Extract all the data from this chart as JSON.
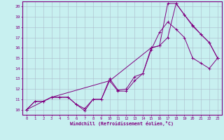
{
  "xlabel": "Windchill (Refroidissement éolien,°C)",
  "xlim": [
    0,
    23
  ],
  "ylim": [
    10,
    20
  ],
  "xticks": [
    0,
    1,
    2,
    3,
    4,
    5,
    6,
    7,
    8,
    9,
    10,
    11,
    12,
    13,
    14,
    15,
    16,
    17,
    18,
    19,
    20,
    21,
    22,
    23
  ],
  "yticks": [
    10,
    11,
    12,
    13,
    14,
    15,
    16,
    17,
    18,
    19,
    20
  ],
  "bg_color": "#c8f0f0",
  "line_color": "#800080",
  "grid_color": "#aabbcc",
  "line1_x": [
    0,
    1,
    2,
    3,
    4,
    5,
    6,
    7,
    8,
    9,
    10,
    11,
    12,
    13,
    14,
    15,
    16,
    17,
    18,
    19,
    20,
    21,
    22,
    23
  ],
  "line1_y": [
    10.0,
    10.8,
    10.8,
    11.2,
    11.2,
    11.2,
    10.5,
    9.9,
    11.0,
    11.0,
    13.0,
    11.9,
    12.0,
    13.2,
    13.5,
    16.0,
    16.2,
    20.3,
    20.3,
    19.2,
    18.1,
    17.3,
    16.5,
    15.0
  ],
  "line2_x": [
    0,
    1,
    2,
    3,
    4,
    5,
    6,
    7,
    8,
    9,
    10,
    11,
    12,
    13,
    14,
    15,
    16,
    17,
    18,
    19,
    20,
    21,
    22,
    23
  ],
  "line2_y": [
    10.0,
    10.8,
    10.8,
    11.2,
    11.2,
    11.2,
    10.5,
    10.1,
    11.0,
    11.0,
    12.8,
    11.8,
    11.8,
    12.8,
    13.5,
    15.8,
    17.5,
    18.5,
    17.8,
    17.0,
    15.0,
    14.5,
    14.0,
    15.0
  ],
  "line3_x": [
    0,
    3,
    10,
    15,
    16,
    17,
    18,
    19,
    20,
    21,
    22,
    23
  ],
  "line3_y": [
    10.0,
    11.2,
    12.8,
    16.0,
    16.2,
    17.0,
    20.3,
    19.2,
    18.2,
    17.3,
    16.5,
    15.0
  ]
}
